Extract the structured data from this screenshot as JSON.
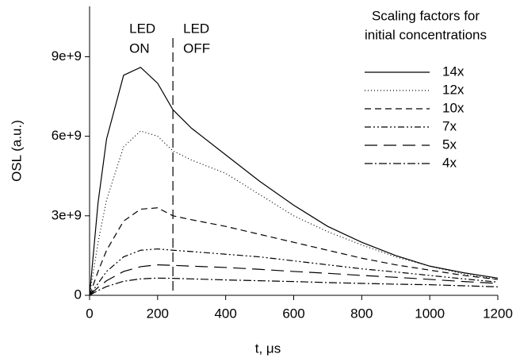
{
  "chart_data": {
    "type": "line",
    "xlabel": "t, μs",
    "ylabel": "OSL (a.u.)",
    "x": [
      0,
      25,
      50,
      100,
      150,
      200,
      245,
      300,
      400,
      500,
      600,
      700,
      800,
      900,
      1000,
      1100,
      1200
    ],
    "series": [
      {
        "name": "14x",
        "color": "#000000",
        "dash": "none",
        "values": [
          0,
          3500000000.0,
          5900000000.0,
          8300000000.0,
          8600000000.0,
          8000000000.0,
          7000000000.0,
          6300000000.0,
          5300000000.0,
          4300000000.0,
          3400000000.0,
          2600000000.0,
          2000000000.0,
          1500000000.0,
          1100000000.0,
          850000000.0,
          650000000.0
        ]
      },
      {
        "name": "12x",
        "color": "#000000",
        "dash": "1,3",
        "values": [
          0,
          2000000000.0,
          3600000000.0,
          5600000000.0,
          6200000000.0,
          6000000000.0,
          5450000000.0,
          5100000000.0,
          4600000000.0,
          3800000000.0,
          3000000000.0,
          2400000000.0,
          1900000000.0,
          1450000000.0,
          1100000000.0,
          800000000.0,
          600000000.0
        ]
      },
      {
        "name": "10x",
        "color": "#000000",
        "dash": "8,5",
        "values": [
          0,
          900000000.0,
          1700000000.0,
          2800000000.0,
          3250000000.0,
          3300000000.0,
          3000000000.0,
          2850000000.0,
          2600000000.0,
          2300000000.0,
          2000000000.0,
          1700000000.0,
          1400000000.0,
          1150000000.0,
          950000000.0,
          750000000.0,
          600000000.0
        ]
      },
      {
        "name": "7x",
        "color": "#000000",
        "dash": "8,3,2,3,2,3",
        "values": [
          0,
          450000000.0,
          900000000.0,
          1450000000.0,
          1700000000.0,
          1750000000.0,
          1700000000.0,
          1650000000.0,
          1550000000.0,
          1450000000.0,
          1300000000.0,
          1150000000.0,
          1000000000.0,
          880000000.0,
          750000000.0,
          620000000.0,
          500000000.0
        ]
      },
      {
        "name": "5x",
        "color": "#000000",
        "dash": "16,8",
        "values": [
          0,
          300000000.0,
          550000000.0,
          900000000.0,
          1080000000.0,
          1150000000.0,
          1130000000.0,
          1100000000.0,
          1050000000.0,
          980000000.0,
          900000000.0,
          830000000.0,
          750000000.0,
          680000000.0,
          600000000.0,
          520000000.0,
          450000000.0
        ]
      },
      {
        "name": "4x",
        "color": "#000000",
        "dash": "10,3,2,3",
        "values": [
          0,
          180000000.0,
          330000000.0,
          530000000.0,
          620000000.0,
          650000000.0,
          640000000.0,
          620000000.0,
          580000000.0,
          550000000.0,
          520000000.0,
          480000000.0,
          450000000.0,
          420000000.0,
          400000000.0,
          360000000.0,
          320000000.0
        ]
      }
    ],
    "xlim": [
      0,
      1200
    ],
    "xticks": [
      0,
      200,
      400,
      600,
      800,
      1000,
      1200
    ],
    "ylim": [
      0,
      10900000000.0
    ],
    "yticks": [
      0,
      {
        "value": 3000000000.0,
        "label": "3e+9"
      },
      {
        "value": 6000000000.0,
        "label": "6e+9"
      },
      {
        "value": 9000000000.0,
        "label": "9e+9"
      }
    ],
    "vline": {
      "x": 245,
      "dash": "12,6"
    },
    "annotations": [
      [
        "LED",
        "ON"
      ],
      [
        "LED",
        "OFF"
      ]
    ],
    "legend_title": [
      "Scaling factors for",
      "initial concentrations"
    ],
    "legend": "upper right"
  }
}
